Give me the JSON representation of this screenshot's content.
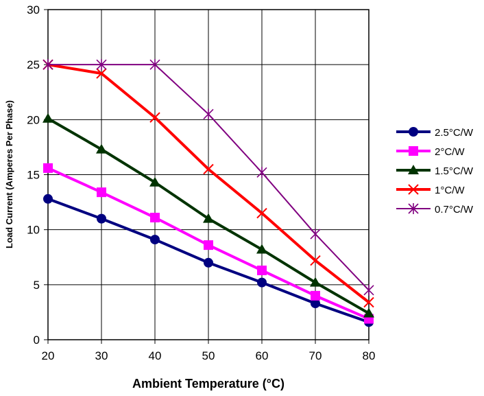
{
  "chart_data": {
    "type": "line",
    "xlabel": "Ambient Temperature (°C)",
    "ylabel": "Load Current (Amperes Per Phase)",
    "x": [
      20,
      30,
      40,
      50,
      60,
      70,
      80
    ],
    "xlim": [
      20,
      80
    ],
    "ylim": [
      0,
      30
    ],
    "x_ticks": [
      20,
      30,
      40,
      50,
      60,
      70,
      80
    ],
    "y_ticks": [
      0,
      5,
      10,
      15,
      20,
      25,
      30
    ],
    "grid": true,
    "legend_position": "right",
    "series": [
      {
        "name": "2.5°C/W",
        "color": "#000080",
        "marker": "circle",
        "values": [
          12.8,
          11.0,
          9.1,
          7.0,
          5.2,
          3.3,
          1.6
        ]
      },
      {
        "name": "2°C/W",
        "color": "#ff00ff",
        "marker": "square",
        "values": [
          15.6,
          13.4,
          11.1,
          8.6,
          6.3,
          4.0,
          1.9
        ]
      },
      {
        "name": "1.5°C/W",
        "color": "#003300",
        "marker": "triangle",
        "values": [
          20.1,
          17.3,
          14.3,
          11.0,
          8.2,
          5.2,
          2.4
        ]
      },
      {
        "name": "1°C/W",
        "color": "#ff0000",
        "marker": "x",
        "values": [
          25.0,
          24.2,
          20.2,
          15.5,
          11.5,
          7.2,
          3.4
        ]
      },
      {
        "name": "0.7°C/W",
        "color": "#800080",
        "marker": "asterisk",
        "values": [
          25.0,
          25.0,
          25.0,
          20.5,
          15.2,
          9.6,
          4.5
        ]
      }
    ]
  }
}
